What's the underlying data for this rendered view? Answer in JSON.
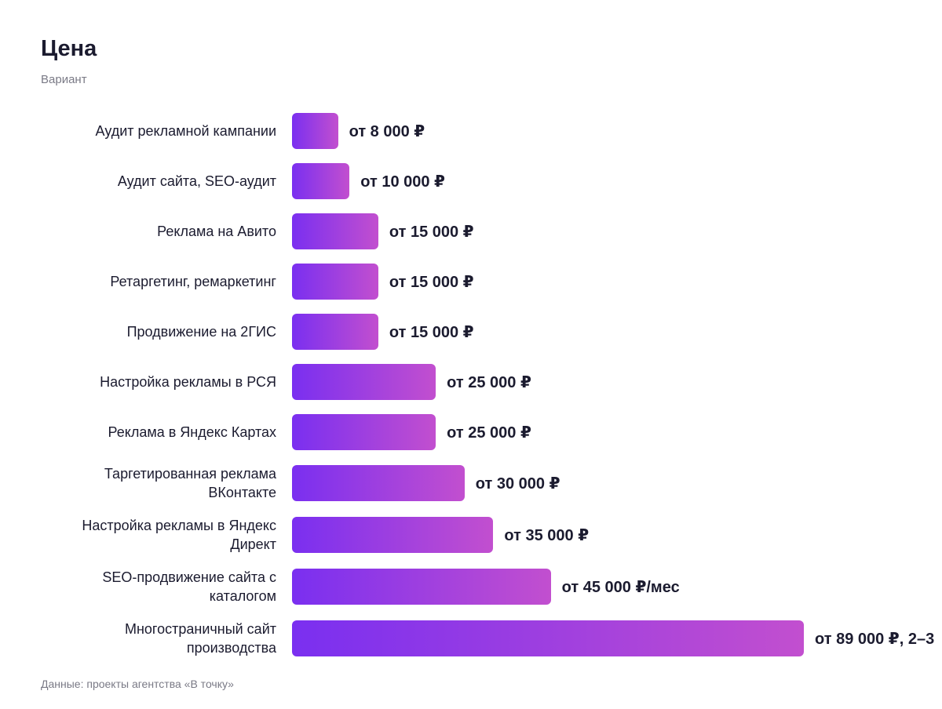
{
  "chart_data": {
    "type": "bar",
    "orientation": "horizontal",
    "title": "Цена",
    "subtitle": "Вариант",
    "categories": [
      "Аудит рекламной кампании",
      "Аудит сайта, SEO-аудит",
      "Реклама на Авито",
      "Ретаргетинг, ремаркетинг",
      "Продвижение на 2ГИС",
      "Настройка рекламы в РСЯ",
      "Реклама в Яндекс Картах",
      "Таргетированная реклама ВКонтакте",
      "Настройка рекламы в Яндекс Директ",
      "SEO-продвижение сайта с каталогом",
      "Многостраничный сайт производства"
    ],
    "values": [
      8000,
      10000,
      15000,
      15000,
      15000,
      25000,
      25000,
      30000,
      35000,
      45000,
      89000
    ],
    "value_labels": [
      "от 8 000 ₽",
      "от 10 000 ₽",
      "от 15 000 ₽",
      "от 15 000 ₽",
      "от 15 000 ₽",
      "от 25 000 ₽",
      "от 25 000 ₽",
      "от 30 000 ₽",
      "от 35 000 ₽",
      "от 45 000 ₽/мес",
      "от 89 000 ₽, 2–3"
    ],
    "note": "Данные: проекты агентства «В точку»"
  }
}
